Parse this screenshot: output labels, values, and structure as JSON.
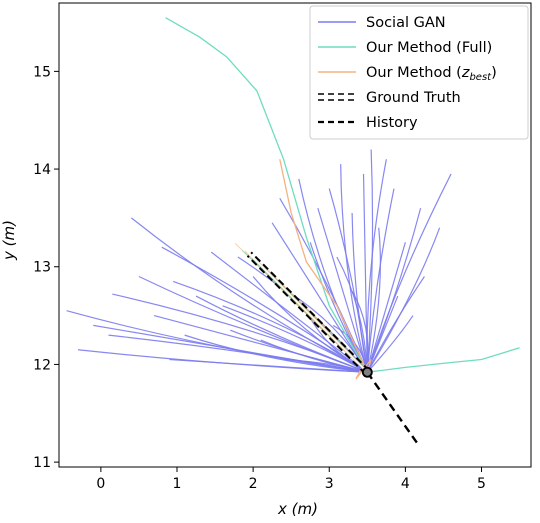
{
  "chart_data": {
    "type": "line",
    "xlabel": "x (m)",
    "ylabel": "y (m)",
    "xlim": [
      -0.55,
      5.65
    ],
    "ylim": [
      10.95,
      15.7
    ],
    "xticks": [
      0,
      1,
      2,
      3,
      4,
      5
    ],
    "yticks": [
      11,
      12,
      13,
      14,
      15
    ],
    "grid": false,
    "legend_position": "top-right",
    "legend": [
      {
        "label": "Social GAN",
        "style": "solid",
        "color": "#7b7bf0"
      },
      {
        "label": "Our Method (Full)",
        "style": "solid",
        "color": "#6fdcc0"
      },
      {
        "label": "Our Method (z_best)",
        "style": "solid",
        "color": "#f5b27f"
      },
      {
        "label": "Ground Truth",
        "style": "double-dashed",
        "color": "#000000"
      },
      {
        "label": "History",
        "style": "dashed",
        "color": "#000000"
      }
    ],
    "origin": [
      3.5,
      11.92
    ],
    "history": [
      [
        3.5,
        11.92
      ],
      [
        4.15,
        11.2
      ]
    ],
    "ground_truth": [
      [
        3.5,
        11.92
      ],
      [
        1.95,
        13.13
      ]
    ],
    "social_gan_endpoints": [
      [
        -0.45,
        12.55
      ],
      [
        -0.3,
        12.15
      ],
      [
        -0.1,
        12.4
      ],
      [
        0.1,
        12.3
      ],
      [
        0.15,
        12.72
      ],
      [
        0.4,
        13.5
      ],
      [
        0.5,
        12.9
      ],
      [
        0.7,
        12.5
      ],
      [
        0.8,
        13.2
      ],
      [
        0.95,
        12.85
      ],
      [
        1.1,
        12.3
      ],
      [
        1.25,
        12.7
      ],
      [
        1.45,
        13.15
      ],
      [
        1.6,
        12.6
      ],
      [
        1.8,
        13.1
      ],
      [
        2.0,
        12.9
      ],
      [
        2.1,
        12.25
      ],
      [
        2.25,
        13.45
      ],
      [
        2.35,
        13.7
      ],
      [
        2.45,
        12.75
      ],
      [
        2.6,
        13.9
      ],
      [
        2.75,
        13.25
      ],
      [
        2.85,
        13.6
      ],
      [
        3.0,
        13.8
      ],
      [
        3.1,
        13.1
      ],
      [
        3.15,
        14.05
      ],
      [
        3.3,
        13.55
      ],
      [
        3.45,
        13.95
      ],
      [
        3.55,
        14.2
      ],
      [
        3.65,
        13.4
      ],
      [
        3.75,
        14.1
      ],
      [
        3.85,
        13.8
      ],
      [
        4.0,
        13.25
      ],
      [
        4.2,
        13.6
      ],
      [
        4.45,
        13.4
      ],
      [
        4.6,
        13.95
      ],
      [
        4.25,
        12.9
      ],
      [
        3.9,
        12.7
      ],
      [
        4.1,
        12.5
      ],
      [
        3.3,
        12.75
      ],
      [
        2.7,
        12.55
      ],
      [
        1.7,
        12.35
      ],
      [
        0.9,
        12.05
      ],
      [
        2.4,
        12.05
      ],
      [
        3.05,
        12.4
      ]
    ],
    "full_method_paths": [
      [
        [
          3.5,
          11.92
        ],
        [
          3.0,
          12.6
        ],
        [
          2.7,
          13.3
        ],
        [
          2.55,
          13.7
        ],
        [
          2.4,
          14.1
        ],
        [
          2.05,
          14.8
        ],
        [
          1.65,
          15.15
        ],
        [
          1.3,
          15.35
        ],
        [
          0.85,
          15.55
        ]
      ],
      [
        [
          3.5,
          11.92
        ],
        [
          4.0,
          11.97
        ],
        [
          4.6,
          12.02
        ],
        [
          5.0,
          12.05
        ],
        [
          5.5,
          12.17
        ]
      ]
    ],
    "zbest_paths": [
      [
        [
          3.5,
          11.92
        ],
        [
          3.1,
          12.6
        ],
        [
          2.7,
          13.05
        ],
        [
          2.5,
          13.55
        ],
        [
          2.35,
          14.1
        ]
      ],
      [
        [
          3.5,
          11.92
        ],
        [
          3.55,
          12.05
        ],
        [
          3.35,
          11.85
        ],
        [
          3.45,
          12.0
        ]
      ]
    ],
    "colors": {
      "social_gan": "#7b7bf0",
      "full": "#6fdcc0",
      "zbest": "#f5b27f",
      "cluster": "#c8b07a",
      "marker_fill": "#7f7f7f"
    }
  }
}
